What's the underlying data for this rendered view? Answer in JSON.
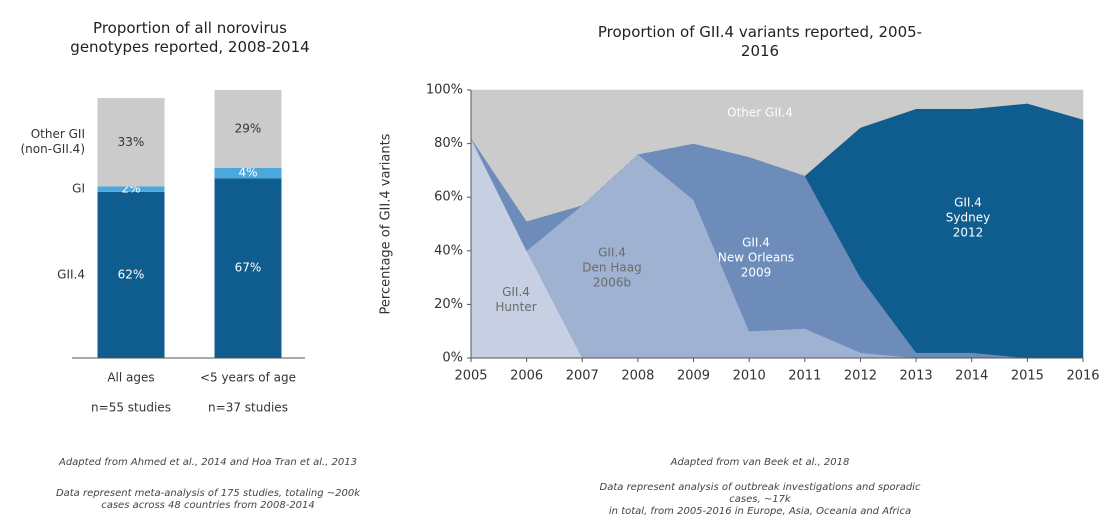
{
  "chart_data": [
    {
      "type": "bar",
      "stacked": true,
      "title": "Proportion of all norovirus\ngenotypes reported, 2008-2014",
      "categories": [
        "All ages",
        "<5 years of age"
      ],
      "category_notes": [
        "n=55 studies",
        "n=37 studies"
      ],
      "ylim": [
        0,
        100
      ],
      "series": [
        {
          "name": "GII.4",
          "color": "#0f5c8e",
          "label_color": "#ffffff",
          "values": [
            62,
            67
          ],
          "value_labels": [
            "62%",
            "67%"
          ]
        },
        {
          "name": "GI",
          "color": "#4aa8dc",
          "label_color": "#ffffff",
          "values": [
            2,
            4
          ],
          "value_labels": [
            "2%",
            "4%"
          ]
        },
        {
          "name": "Other GII\n(non-GII.4)",
          "color": "#cbcbcb",
          "label_color": "#333333",
          "values": [
            33,
            29
          ],
          "value_labels": [
            "33%",
            "29%"
          ]
        }
      ],
      "footnotes": [
        "Adapted from Ahmed et al., 2014 and Hoa Tran et al., 2013",
        "Data represent meta-analysis of 175 studies, totaling ~200k\ncases across 48 countries from 2008-2014"
      ]
    },
    {
      "type": "area",
      "stacked": true,
      "title": "Proportion of GII.4 variants reported, 2005-2016",
      "y_label": "Percentage of GII.4 variants",
      "x": [
        2005,
        2006,
        2007,
        2008,
        2009,
        2010,
        2011,
        2012,
        2013,
        2014,
        2015,
        2016
      ],
      "xlim": [
        2005,
        2016
      ],
      "xticks": [
        2005,
        2006,
        2007,
        2008,
        2009,
        2010,
        2011,
        2012,
        2013,
        2014,
        2015,
        2016
      ],
      "ylim": [
        0,
        100
      ],
      "yticks": [
        {
          "value": 0,
          "label": "0%"
        },
        {
          "value": 20,
          "label": "20%"
        },
        {
          "value": 40,
          "label": "40%"
        },
        {
          "value": 60,
          "label": "60%"
        },
        {
          "value": 80,
          "label": "80%"
        },
        {
          "value": 100,
          "label": "100%"
        }
      ],
      "series": [
        {
          "name": "GII.4\nHunter",
          "color": "#c6d0e2",
          "label_color": "#6b6b6b",
          "values": [
            82,
            40,
            0,
            0,
            0,
            0,
            0,
            0,
            0,
            0,
            0,
            0
          ]
        },
        {
          "name": "GII.4\nDen Haag\n2006b",
          "color": "#a0b2d2",
          "label_color": "#6b6b6b",
          "values": [
            0,
            0,
            57,
            76,
            59,
            10,
            11,
            2,
            0,
            0,
            0,
            0
          ]
        },
        {
          "name": "GII.4\nNew Orleans\n2009",
          "color": "#6e8cba",
          "label_color": "#ffffff",
          "values": [
            0,
            11,
            0,
            0,
            21,
            65,
            57,
            28,
            2,
            2,
            0,
            0
          ]
        },
        {
          "name": "GII.4\nSydney\n2012",
          "color": "#0f5c8e",
          "label_color": "#ffffff",
          "values": [
            0,
            0,
            0,
            0,
            0,
            0,
            0,
            56,
            91,
            91,
            95,
            89
          ]
        },
        {
          "name": "Other GII.4",
          "color": "#cbcbcb",
          "label_color": "#ffffff",
          "values": [
            18,
            49,
            43,
            24,
            20,
            25,
            32,
            14,
            7,
            7,
            5,
            11
          ]
        }
      ],
      "footnotes": [
        "Adapted from van Beek et al., 2018",
        "Data represent analysis of outbreak investigations and sporadic cases, ~17k\nin total, from 2005-2016 in Europe, Asia, Oceania and Africa"
      ]
    }
  ]
}
